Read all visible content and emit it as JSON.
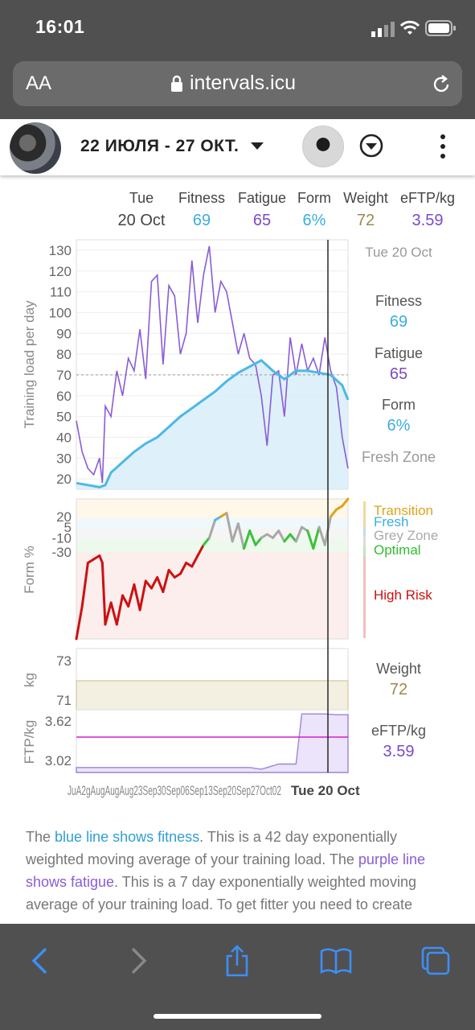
{
  "status": {
    "time": "16:01"
  },
  "browser": {
    "text_size": "AA",
    "url": "intervals.icu"
  },
  "header": {
    "date_range": "22 ИЮЛЯ - 27 ОКТ."
  },
  "summary": {
    "day": "Tue",
    "date": "20 Oct",
    "fitness_label": "Fitness",
    "fitness_value": "69",
    "fatigue_label": "Fatigue",
    "fatigue_value": "65",
    "form_label": "Form",
    "form_value": "6%",
    "weight_label": "Weight",
    "weight_value": "72",
    "eftp_label": "eFTP/kg",
    "eftp_value": "3.59"
  },
  "side_panel": {
    "date": "Tue 20 Oct",
    "fitness_label": "Fitness",
    "fitness_value": "69",
    "fatigue_label": "Fatigue",
    "fatigue_value": "65",
    "form_label": "Form",
    "form_value": "6%",
    "zone": "Fresh Zone",
    "form_zones": [
      "Transition",
      "Fresh",
      "Grey Zone",
      "Optimal",
      "High Risk"
    ],
    "weight_label": "Weight",
    "weight_value": "72",
    "eftp_label": "eFTP/kg",
    "eftp_value": "3.59"
  },
  "colors": {
    "fitness": "#4cb8e6",
    "fatigue": "#8a5cd6",
    "weight": "#9b8a4a",
    "transition": "#e0a21a",
    "fresh": "#4cb8e6",
    "grey": "#a8a8a8",
    "optimal": "#3ac23a",
    "high_risk": "#cc1111",
    "eftp_line": "#d020d0"
  },
  "chart_data": [
    {
      "type": "line",
      "title": "",
      "ylabel": "Training load per day",
      "ylim": [
        15,
        135
      ],
      "yticks": [
        20,
        30,
        40,
        50,
        60,
        70,
        80,
        90,
        100,
        110,
        120,
        130
      ],
      "series": [
        {
          "name": "Fitness",
          "x": [
            0,
            4,
            8,
            10,
            12,
            16,
            20,
            24,
            28,
            32,
            36,
            40,
            44,
            48,
            52,
            56,
            60,
            64,
            68,
            72,
            76,
            80,
            84,
            88,
            92,
            94
          ],
          "y": [
            18,
            17,
            16,
            17,
            23,
            28,
            33,
            37,
            40,
            45,
            50,
            54,
            58,
            62,
            67,
            71,
            74,
            77,
            72,
            68,
            72,
            72,
            71,
            70,
            65,
            58
          ]
        },
        {
          "name": "Fatigue",
          "x": [
            0,
            2,
            4,
            6,
            8,
            9,
            10,
            12,
            14,
            16,
            18,
            20,
            22,
            24,
            26,
            28,
            30,
            32,
            34,
            36,
            38,
            40,
            42,
            44,
            46,
            48,
            50,
            52,
            54,
            56,
            58,
            60,
            62,
            64,
            66,
            68,
            70,
            72,
            74,
            76,
            78,
            80,
            82,
            84,
            86,
            88,
            90,
            92,
            94
          ],
          "y": [
            48,
            33,
            25,
            22,
            30,
            18,
            55,
            50,
            72,
            60,
            78,
            72,
            92,
            68,
            115,
            118,
            75,
            113,
            108,
            80,
            90,
            125,
            95,
            118,
            132,
            100,
            115,
            110,
            95,
            80,
            90,
            78,
            75,
            60,
            36,
            70,
            72,
            50,
            88,
            70,
            85,
            72,
            78,
            70,
            88,
            72,
            64,
            40,
            25
          ]
        }
      ]
    },
    {
      "type": "line",
      "ylabel": "Form %",
      "yticks": [
        20,
        5,
        -10,
        -30
      ],
      "zones": [
        "Transition",
        "Fresh",
        "Grey Zone",
        "Optimal",
        "High Risk"
      ],
      "series": [
        {
          "name": "Form",
          "x": [
            0,
            2,
            4,
            6,
            8,
            9,
            10,
            12,
            14,
            16,
            18,
            20,
            22,
            24,
            26,
            28,
            30,
            32,
            34,
            36,
            38,
            40,
            42,
            44,
            46,
            48,
            50,
            52,
            54,
            56,
            58,
            60,
            62,
            64,
            66,
            68,
            70,
            72,
            74,
            76,
            78,
            80,
            82,
            84,
            86,
            88,
            90,
            92,
            94
          ],
          "y": [
            -270,
            -180,
            -60,
            -50,
            -40,
            -60,
            -230,
            -170,
            -230,
            -150,
            -180,
            -120,
            -190,
            -110,
            -130,
            -100,
            -140,
            -80,
            -100,
            -90,
            -60,
            -70,
            -40,
            -20,
            -10,
            15,
            20,
            25,
            -15,
            10,
            -25,
            0,
            -20,
            -10,
            -5,
            -10,
            0,
            -15,
            -5,
            -15,
            5,
            0,
            -25,
            5,
            -20,
            20,
            30,
            35,
            45
          ]
        }
      ]
    },
    {
      "type": "line",
      "ylabel": "kg",
      "yticks": [
        73,
        71
      ],
      "series": [
        {
          "name": "Weight",
          "x": [],
          "y": []
        }
      ]
    },
    {
      "type": "area",
      "ylabel": "FTP/kg",
      "yticks": [
        3.62,
        3.02
      ],
      "series": [
        {
          "name": "eFTP/kg",
          "x": [
            0,
            20,
            40,
            60,
            64,
            66,
            70,
            76,
            78,
            80,
            86,
            90,
            94
          ],
          "y": [
            3.02,
            3.02,
            3.02,
            3.02,
            3.0,
            3.02,
            3.06,
            3.06,
            3.65,
            3.65,
            3.65,
            3.64,
            3.64
          ]
        }
      ],
      "x_tick_labels": [
        "Jul",
        "Aug 26",
        "Aug 02",
        "Aug 09",
        "Aug 16",
        "Aug 23",
        "Aug 30",
        "Sep 06",
        "Sep 13",
        "Sep 20",
        "Sep 27",
        "Oct 02"
      ],
      "x_tick_text": "JuA2gAugAugAug23Sep30Sep06Sep13Sep20Sep27Oct02",
      "selected_label": "Tue 20 Oct"
    }
  ],
  "description": {
    "p1": "The ",
    "blue_link": "blue line shows fitness",
    "p2": ". This is a 42 day exponentially weighted moving average of your training load. The ",
    "purple_link": "purple line shows fatigue",
    "p3": ". This is a 7 day exponentially weighted moving average of your training load. To get fitter you need to create"
  }
}
